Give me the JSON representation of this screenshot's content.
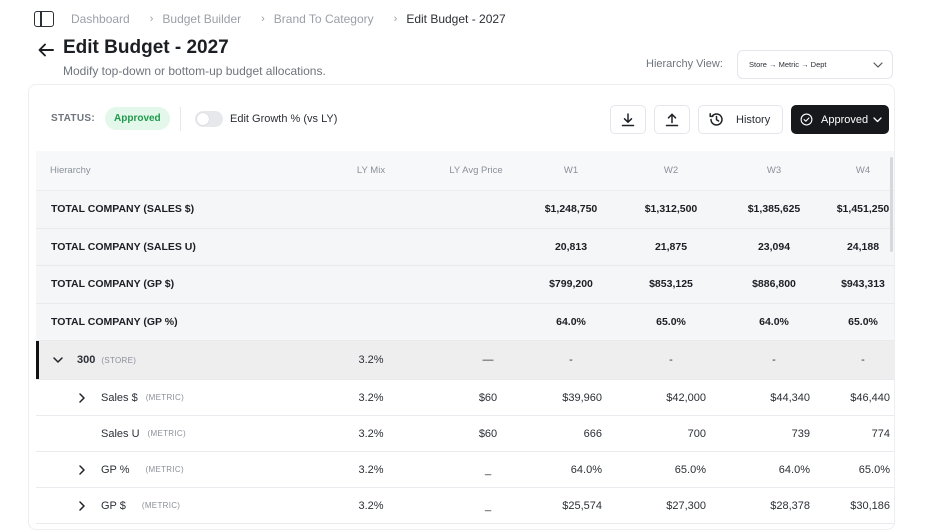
{
  "breadcrumb": [
    "Dashboard",
    "Budget Builder",
    "Brand To Category",
    "Edit Budget - 2027"
  ],
  "header": {
    "title": "Edit Budget - 2027",
    "subtitle": "Modify top-down or bottom-up budget allocations.",
    "hierarchy_label": "Hierarchy View:",
    "hierarchy_value": "Store → Metric → Dept"
  },
  "toolbar": {
    "status_label": "STATUS:",
    "status_value": "Approved",
    "toggle_label": "Edit Growth % (vs LY)",
    "toggle_on": false,
    "history_label": "History",
    "approved_label": "Approved"
  },
  "colors": {
    "accent": "#16181c",
    "status_badge_bg": "#e3f7ea",
    "status_badge_text": "#1f9a4c"
  },
  "table": {
    "columns": [
      "Hierarchy",
      "LY Mix",
      "LY Avg Price",
      "W1",
      "W2",
      "W3",
      "W4"
    ],
    "totals": [
      {
        "name": "TOTAL COMPANY (SALES $)",
        "values": [
          "$1,248,750",
          "$1,312,500",
          "$1,385,625",
          "$1,451,250"
        ]
      },
      {
        "name": "TOTAL COMPANY (SALES U)",
        "values": [
          "20,813",
          "21,875",
          "23,094",
          "24,188"
        ]
      },
      {
        "name": "TOTAL COMPANY (GP $)",
        "values": [
          "$799,200",
          "$853,125",
          "$886,800",
          "$943,313"
        ]
      },
      {
        "name": "TOTAL COMPANY (GP %)",
        "values": [
          "64.0%",
          "65.0%",
          "64.0%",
          "65.0%"
        ]
      }
    ],
    "store": {
      "name": "300",
      "tag": "(STORE)",
      "ly_mix": "3.2%",
      "ly_avg_price": "—",
      "weeks": [
        "-",
        "-",
        "-",
        "-"
      ]
    },
    "metrics": [
      {
        "name": "Sales $",
        "tag": "(METRIC)",
        "ly_mix": "3.2%",
        "ly_avg_price": "$60",
        "weeks": [
          "$39,960",
          "$42,000",
          "$44,340",
          "$46,440"
        ]
      },
      {
        "name": "Sales U",
        "tag": "(METRIC)",
        "ly_mix": "3.2%",
        "ly_avg_price": "$60",
        "weeks": [
          "666",
          "700",
          "739",
          "774"
        ]
      },
      {
        "name": "GP %",
        "tag": "(METRIC)",
        "ly_mix": "3.2%",
        "ly_avg_price": "_",
        "weeks": [
          "64.0%",
          "65.0%",
          "64.0%",
          "65.0%"
        ]
      },
      {
        "name": "GP $",
        "tag": "(METRIC)",
        "ly_mix": "3.2%",
        "ly_avg_price": "_",
        "weeks": [
          "$25,574",
          "$27,300",
          "$28,378",
          "$30,186"
        ]
      }
    ]
  }
}
